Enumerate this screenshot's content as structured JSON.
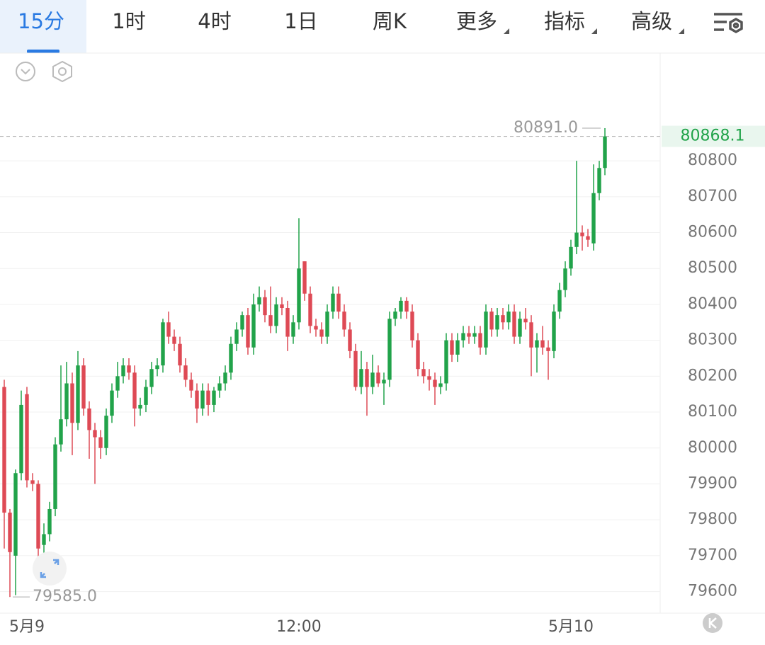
{
  "tabs": [
    "15分",
    "1时",
    "4时",
    "1日",
    "周K",
    "更多",
    "指标",
    "高级"
  ],
  "chart_data": {
    "type": "candlestick",
    "categories": [
      null,
      null,
      null,
      null,
      "5月9",
      null,
      null,
      null,
      null,
      null,
      null,
      null,
      null,
      null,
      null,
      null,
      null,
      null,
      null,
      null,
      null,
      null,
      null,
      null,
      null,
      null,
      null,
      null,
      null,
      null,
      null,
      null,
      null,
      null,
      null,
      null,
      null,
      null,
      null,
      null,
      null,
      null,
      null,
      null,
      null,
      null,
      null,
      null,
      null,
      null,
      null,
      null,
      "12:00",
      null,
      null,
      null,
      null,
      null,
      null,
      null,
      null,
      null,
      null,
      null,
      null,
      null,
      null,
      null,
      null,
      null,
      null,
      null,
      null,
      null,
      null,
      null,
      null,
      null,
      null,
      null,
      null,
      null,
      null,
      null,
      null,
      null,
      null,
      null,
      null,
      null,
      null,
      null,
      null,
      null,
      null,
      null,
      null,
      null,
      null,
      null,
      "5月10",
      null,
      null,
      null,
      null,
      null,
      null
    ],
    "open": [
      80170,
      79820,
      79700,
      79930,
      80150,
      79910,
      79900,
      79730,
      79760,
      79830,
      80010,
      80080,
      80180,
      80070,
      80230,
      80110,
      80050,
      80030,
      80000,
      80090,
      80160,
      80200,
      80230,
      80210,
      80110,
      80120,
      80170,
      80220,
      80230,
      80350,
      80310,
      80290,
      80230,
      80190,
      80160,
      80110,
      80160,
      80120,
      80160,
      80180,
      80210,
      80290,
      80330,
      80370,
      80280,
      80400,
      80420,
      80370,
      80340,
      80400,
      80390,
      80310,
      80350,
      80520,
      80430,
      80340,
      80330,
      80310,
      80380,
      80430,
      80380,
      80330,
      80270,
      80170,
      80220,
      80170,
      80210,
      80180,
      80190,
      80360,
      80380,
      80410,
      80380,
      80300,
      80220,
      80200,
      80190,
      80170,
      80180,
      80300,
      80260,
      80300,
      80320,
      80310,
      80320,
      80280,
      80380,
      80330,
      80370,
      80350,
      80380,
      80310,
      80360,
      80350,
      80280,
      80300,
      80280,
      80270,
      80380,
      80440,
      80500,
      80560,
      80600,
      80590,
      80570,
      80710,
      80780
    ],
    "high": [
      80190,
      79830,
      79940,
      80160,
      80170,
      79930,
      79910,
      79790,
      79850,
      80030,
      80230,
      80240,
      80210,
      80270,
      80250,
      80130,
      80070,
      80050,
      80110,
      80180,
      80240,
      80250,
      80250,
      80230,
      80140,
      80190,
      80240,
      80250,
      80360,
      80380,
      80330,
      80310,
      80250,
      80210,
      80180,
      80180,
      80180,
      80170,
      80200,
      80230,
      80310,
      80350,
      80380,
      80390,
      80430,
      80450,
      80440,
      80450,
      80420,
      80420,
      80410,
      80370,
      80640,
      80520,
      80450,
      80360,
      80350,
      80400,
      80450,
      80450,
      80400,
      80350,
      80290,
      80270,
      80240,
      80260,
      80230,
      80210,
      80380,
      80390,
      80420,
      80420,
      80400,
      80320,
      80240,
      80220,
      80210,
      80200,
      80320,
      80320,
      80320,
      80340,
      80340,
      80340,
      80340,
      80400,
      80390,
      80390,
      80390,
      80400,
      80400,
      80380,
      80390,
      80370,
      80320,
      80340,
      80300,
      80400,
      80460,
      80520,
      80580,
      80800,
      80620,
      80610,
      80790,
      80800,
      80891
    ],
    "low": [
      79720,
      79585,
      79590,
      79910,
      79890,
      79880,
      79670,
      79690,
      79740,
      79810,
      79990,
      80060,
      79980,
      80050,
      80090,
      79970,
      79900,
      79970,
      79980,
      80070,
      80140,
      80180,
      80190,
      80060,
      80090,
      80100,
      80150,
      80200,
      80210,
      80290,
      80270,
      80210,
      80170,
      80140,
      80070,
      80090,
      80090,
      80100,
      80140,
      80160,
      80190,
      80270,
      80310,
      80260,
      80260,
      80380,
      80350,
      80320,
      80320,
      80370,
      80270,
      80290,
      80330,
      80410,
      80320,
      80310,
      80290,
      80290,
      80360,
      80360,
      80310,
      80250,
      80160,
      80150,
      80090,
      80150,
      80170,
      80120,
      80170,
      80340,
      80360,
      80360,
      80280,
      80200,
      80180,
      80160,
      80120,
      80150,
      80160,
      80240,
      80240,
      80280,
      80290,
      80290,
      80260,
      80260,
      80310,
      80310,
      80330,
      80330,
      80290,
      80290,
      80330,
      80200,
      80210,
      80260,
      80190,
      80250,
      80360,
      80420,
      80480,
      80540,
      80550,
      80560,
      80550,
      80690,
      80760
    ],
    "close": [
      79820,
      79710,
      79930,
      80120,
      79910,
      79900,
      79720,
      79760,
      79830,
      80010,
      80080,
      80180,
      80070,
      80230,
      80110,
      80050,
      80030,
      80000,
      80090,
      80160,
      80200,
      80230,
      80210,
      80110,
      80120,
      80170,
      80220,
      80230,
      80350,
      80310,
      80290,
      80230,
      80190,
      80160,
      80110,
      80160,
      80120,
      80160,
      80180,
      80210,
      80290,
      80330,
      80370,
      80280,
      80400,
      80420,
      80370,
      80340,
      80400,
      80390,
      80310,
      80350,
      80500,
      80430,
      80340,
      80330,
      80310,
      80380,
      80430,
      80380,
      80330,
      80270,
      80170,
      80220,
      80170,
      80210,
      80180,
      80190,
      80360,
      80380,
      80410,
      80380,
      80300,
      80220,
      80200,
      80190,
      80170,
      80180,
      80300,
      80260,
      80300,
      80320,
      80310,
      80320,
      80280,
      80380,
      80330,
      80370,
      80350,
      80380,
      80310,
      80360,
      80350,
      80280,
      80300,
      80280,
      80270,
      80380,
      80440,
      80500,
      80560,
      80600,
      80590,
      80580,
      80710,
      80780,
      80868.1
    ],
    "up_color": "#21a34a",
    "down_color": "#de4a55",
    "ylim": [
      79540,
      81100
    ],
    "yticks": [
      79600,
      79700,
      79800,
      79900,
      80000,
      80100,
      80200,
      80300,
      80400,
      80500,
      80600,
      80700,
      80800
    ],
    "grid": true,
    "max_label": {
      "value": 80891,
      "label": "80891.0"
    },
    "min_label": {
      "value": 79585,
      "label": "79585.0"
    },
    "last_price": 80868.1
  }
}
